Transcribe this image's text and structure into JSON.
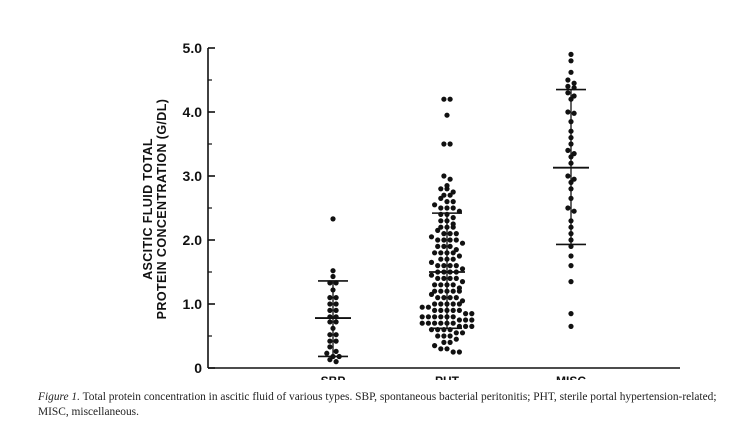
{
  "chart_data": {
    "type": "scatter",
    "subtype": "dot-strip",
    "ylabel": [
      "ASCITIC FLUID TOTAL",
      "PROTEIN CONCENTRATION (G/DL)"
    ],
    "ylim": [
      0,
      5.0
    ],
    "yticks": [
      {
        "value": 0,
        "label": "0"
      },
      {
        "value": 1.0,
        "label": "1.0"
      },
      {
        "value": 2.0,
        "label": "2.0"
      },
      {
        "value": 3.0,
        "label": "3.0"
      },
      {
        "value": 4.0,
        "label": "4.0"
      },
      {
        "value": 5.0,
        "label": "5.0"
      }
    ],
    "categories": [
      "SBP",
      "PHT",
      "MISC"
    ],
    "series": [
      {
        "category": "SBP",
        "mean": 0.78,
        "sd_upper": 1.36,
        "sd_lower": 0.18,
        "values": [
          2.33,
          1.52,
          1.43,
          1.33,
          1.33,
          1.22,
          1.1,
          1.1,
          1.0,
          1.0,
          0.9,
          0.9,
          0.8,
          0.8,
          0.72,
          0.72,
          0.62,
          0.52,
          0.52,
          0.42,
          0.42,
          0.33,
          0.26,
          0.23,
          0.18,
          0.18,
          0.13,
          0.1
        ]
      },
      {
        "category": "PHT",
        "mean": 1.5,
        "sd_upper": 2.42,
        "sd_lower": 0.62,
        "values": [
          4.2,
          4.2,
          3.95,
          3.5,
          3.5,
          3.0,
          2.95,
          2.85,
          2.8,
          2.8,
          2.75,
          2.7,
          2.7,
          2.65,
          2.6,
          2.6,
          2.55,
          2.5,
          2.5,
          2.5,
          2.45,
          2.4,
          2.4,
          2.35,
          2.3,
          2.3,
          2.25,
          2.2,
          2.2,
          2.2,
          2.15,
          2.1,
          2.1,
          2.1,
          2.05,
          2.0,
          2.0,
          2.0,
          2.0,
          1.95,
          1.9,
          1.9,
          1.9,
          1.85,
          1.8,
          1.8,
          1.8,
          1.8,
          1.75,
          1.7,
          1.7,
          1.7,
          1.65,
          1.6,
          1.6,
          1.6,
          1.6,
          1.55,
          1.5,
          1.5,
          1.5,
          1.5,
          1.45,
          1.4,
          1.4,
          1.4,
          1.4,
          1.35,
          1.3,
          1.3,
          1.3,
          1.3,
          1.25,
          1.2,
          1.2,
          1.2,
          1.2,
          1.2,
          1.15,
          1.1,
          1.1,
          1.1,
          1.1,
          1.05,
          1.0,
          1.0,
          1.0,
          1.0,
          1.0,
          0.95,
          0.95,
          0.9,
          0.9,
          0.9,
          0.9,
          0.9,
          0.85,
          0.85,
          0.8,
          0.8,
          0.8,
          0.8,
          0.8,
          0.8,
          0.75,
          0.75,
          0.75,
          0.7,
          0.7,
          0.7,
          0.7,
          0.7,
          0.7,
          0.65,
          0.65,
          0.65,
          0.6,
          0.6,
          0.6,
          0.6,
          0.55,
          0.55,
          0.5,
          0.5,
          0.5,
          0.45,
          0.4,
          0.4,
          0.35,
          0.3,
          0.3,
          0.25,
          0.25
        ]
      },
      {
        "category": "MISC",
        "mean": 3.13,
        "sd_upper": 4.35,
        "sd_lower": 1.93,
        "values": [
          4.9,
          4.8,
          4.62,
          4.5,
          4.45,
          4.4,
          4.38,
          4.3,
          4.25,
          4.2,
          4.0,
          3.98,
          3.85,
          3.7,
          3.6,
          3.5,
          3.4,
          3.35,
          3.3,
          3.2,
          3.0,
          2.95,
          2.9,
          2.8,
          2.65,
          2.5,
          2.45,
          2.3,
          2.2,
          2.1,
          2.0,
          1.9,
          1.75,
          1.6,
          1.35,
          0.85,
          0.65
        ]
      }
    ]
  },
  "caption": {
    "label": "Figure 1.",
    "text": "Total protein concentration in ascitic fluid of various types. SBP, spontaneous bacterial peritonitis; PHT, sterile portal hypertension-related; MISC, miscellaneous."
  }
}
